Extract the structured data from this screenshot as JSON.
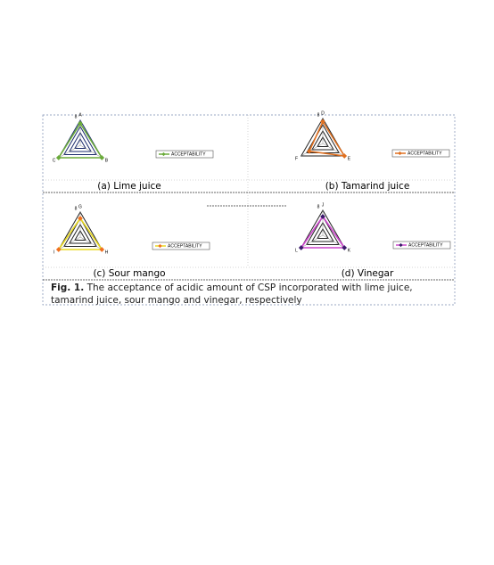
{
  "chart_data": [
    {
      "type": "radar",
      "title": "(a) Lime juice",
      "categories": [
        "A",
        "B",
        "C"
      ],
      "rlim": [
        0,
        8
      ],
      "rticks": [
        2,
        4,
        6,
        8
      ],
      "grid_color": "#1a2a6c",
      "series": [
        {
          "name": "ACCEPTABILITY",
          "color": "#6aaa3a",
          "values": [
            7,
            8,
            8
          ]
        }
      ]
    },
    {
      "type": "radar",
      "title": "(b) Tamarind juice",
      "categories": [
        "D",
        "E",
        "F"
      ],
      "rlim": [
        0,
        8
      ],
      "rticks": [
        2,
        4,
        6,
        8
      ],
      "grid_color": "#222222",
      "series": [
        {
          "name": "ACCEPTABILITY",
          "color": "#e07020",
          "values": [
            7,
            8,
            5
          ]
        }
      ]
    },
    {
      "type": "radar",
      "title": "(c) Sour mango",
      "categories": [
        "G",
        "H",
        "I"
      ],
      "rlim": [
        0,
        8
      ],
      "rticks": [
        2,
        4,
        6,
        8
      ],
      "grid_color": "#222222",
      "series": [
        {
          "name": "ACCEPTABILITY",
          "color": "#e8d820",
          "marker": "#f07020",
          "values": [
            6,
            8,
            8
          ]
        }
      ]
    },
    {
      "type": "radar",
      "title": "(d) Vinegar",
      "categories": [
        "J",
        "K",
        "L"
      ],
      "rlim": [
        0,
        8
      ],
      "rticks": [
        2,
        4,
        6,
        8
      ],
      "grid_color": "#222222",
      "series": [
        {
          "name": "ACCEPTABILITY",
          "color": "#cc44cc",
          "marker": "#3a1a6a",
          "values": [
            6,
            8,
            8
          ]
        }
      ]
    }
  ],
  "caption": {
    "label": "Fig. 1.",
    "text": "The acceptance of acidic amount of CSP incorporated with lime juice, tamarind juice, sour mango and vinegar, respectively"
  }
}
